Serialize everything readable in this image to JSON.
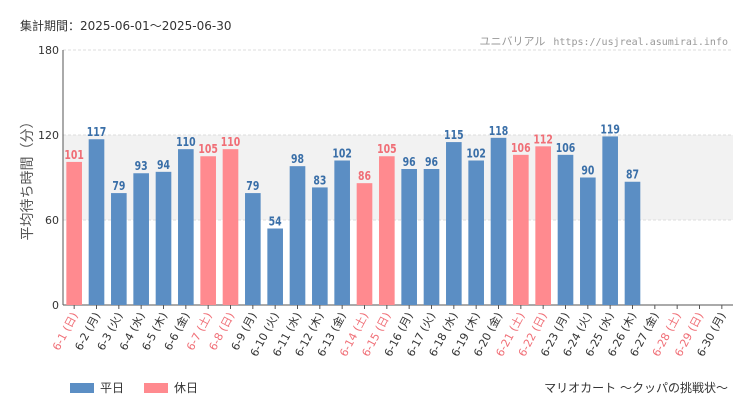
{
  "header": {
    "period_label": "集計期間：2025-06-01～2025-06-30",
    "source_name": "ユニバリアル",
    "source_url": "https://usjreal.asumirai.info"
  },
  "footer": {
    "attraction": "マリオカート ～クッパの挑戦状～"
  },
  "legend": [
    {
      "label": "平日",
      "color": "#5b8ec4"
    },
    {
      "label": "休日",
      "color": "#ff8a8f"
    }
  ],
  "chart_data": {
    "type": "bar",
    "ylabel": "平均待ち時間（分）",
    "ylim": [
      0,
      180
    ],
    "yticks": [
      0,
      60,
      120,
      180
    ],
    "shaded_band": [
      60,
      120
    ],
    "colors": {
      "weekday": "#5b8ec4",
      "holiday": "#ff8a8f",
      "holiday_label": "#f06e76",
      "weekday_value": "#3a6fa8"
    },
    "categories": [
      "6-1 (日)",
      "6-2 (月)",
      "6-3 (火)",
      "6-4 (水)",
      "6-5 (木)",
      "6-6 (金)",
      "6-7 (土)",
      "6-8 (日)",
      "6-9 (月)",
      "6-10 (火)",
      "6-11 (水)",
      "6-12 (木)",
      "6-13 (金)",
      "6-14 (土)",
      "6-15 (日)",
      "6-16 (月)",
      "6-17 (火)",
      "6-18 (水)",
      "6-19 (木)",
      "6-20 (金)",
      "6-21 (土)",
      "6-22 (日)",
      "6-23 (月)",
      "6-24 (火)",
      "6-25 (水)",
      "6-26 (木)",
      "6-27 (金)",
      "6-28 (土)",
      "6-29 (日)",
      "6-30 (月)"
    ],
    "values": [
      101,
      117,
      79,
      93,
      94,
      110,
      105,
      110,
      79,
      54,
      98,
      83,
      102,
      86,
      105,
      96,
      96,
      115,
      102,
      118,
      106,
      112,
      106,
      90,
      119,
      87,
      null,
      null,
      null,
      null
    ],
    "holiday": [
      true,
      false,
      false,
      false,
      false,
      false,
      true,
      true,
      false,
      false,
      false,
      false,
      false,
      true,
      true,
      false,
      false,
      false,
      false,
      false,
      true,
      true,
      false,
      false,
      false,
      false,
      false,
      true,
      true,
      false
    ]
  }
}
